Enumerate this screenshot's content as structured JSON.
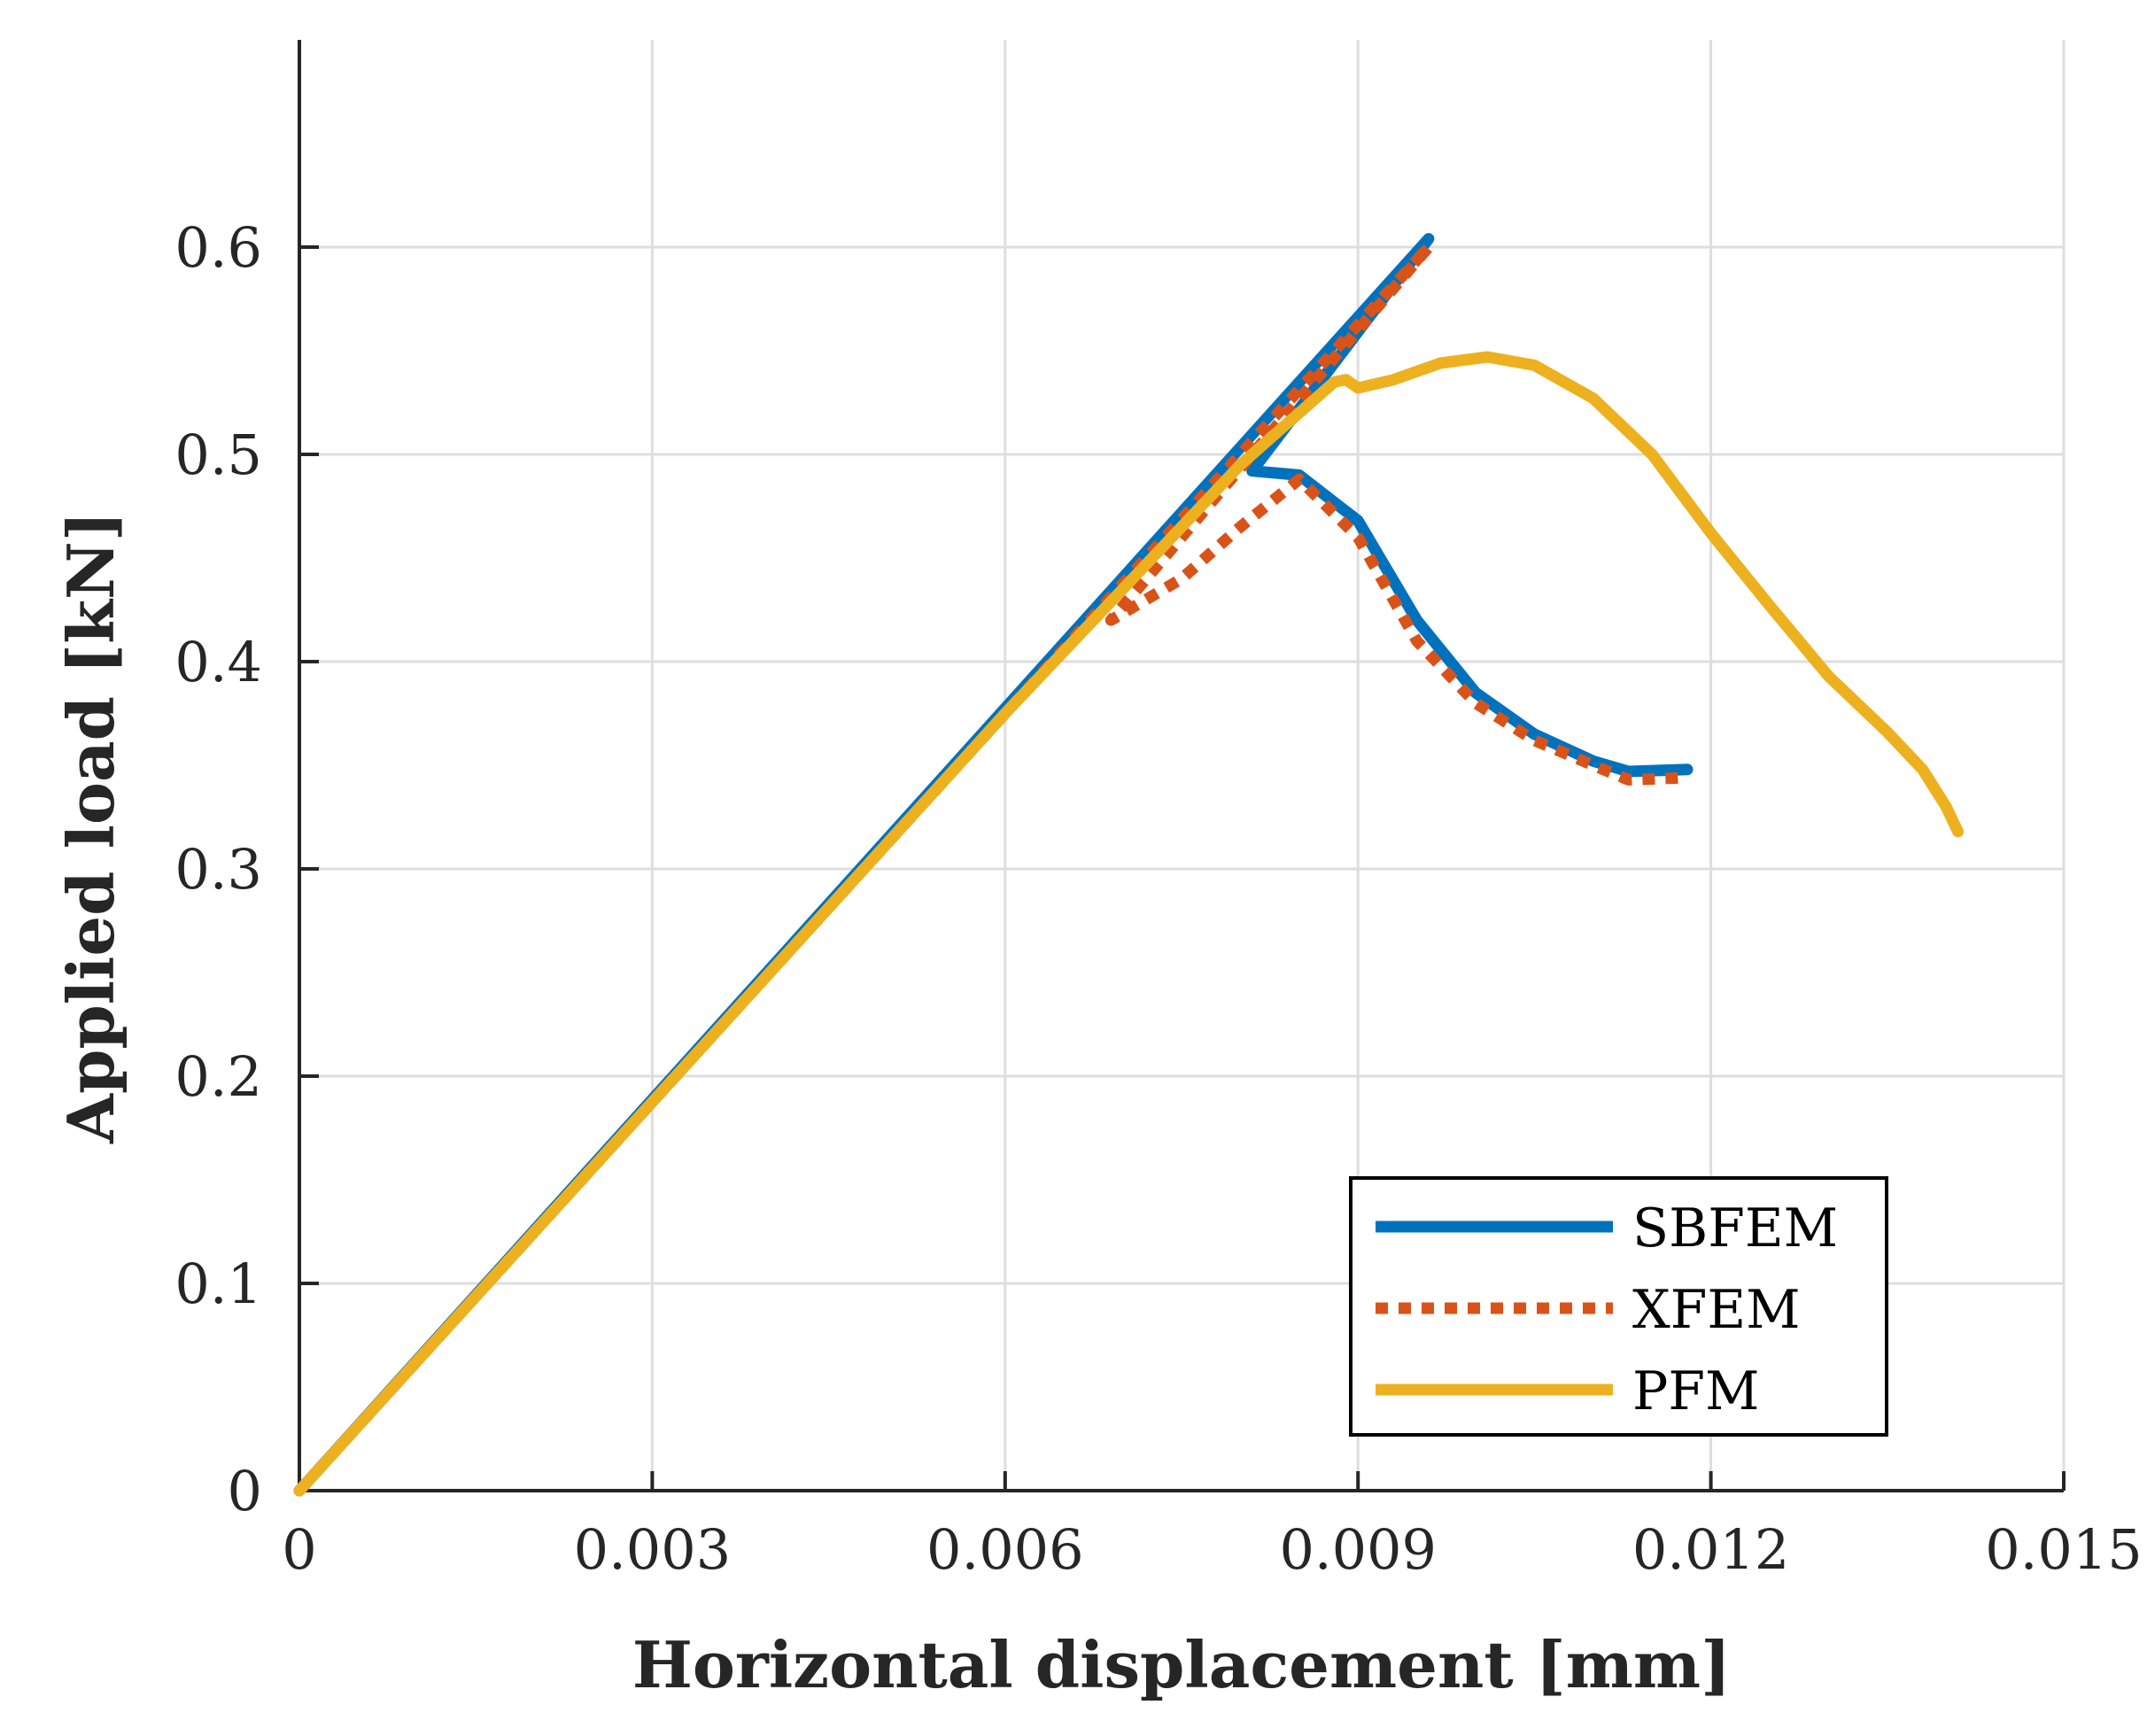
{
  "chart_data": {
    "type": "line",
    "title": "",
    "xlabel": "Horizontal displacement [mm]",
    "ylabel": "Applied load [kN]",
    "xlim": [
      0,
      0.015
    ],
    "ylim": [
      0,
      0.7
    ],
    "grid": true,
    "legend_position": "bottom-right",
    "x_ticks": [
      0,
      0.003,
      0.006,
      0.009,
      0.012,
      0.015
    ],
    "x_tick_labels": [
      "0",
      "0.003",
      "0.006",
      "0.009",
      "0.012",
      "0.015"
    ],
    "y_ticks": [
      0,
      0.1,
      0.2,
      0.3,
      0.4,
      0.5,
      0.6
    ],
    "y_tick_labels": [
      "0",
      "0.1",
      "0.2",
      "0.3",
      "0.4",
      "0.5",
      "0.6"
    ],
    "series": [
      {
        "name": "SBFEM",
        "color": "#0072BD",
        "style": "solid",
        "x": [
          0,
          0.0096,
          0.0081,
          0.0085,
          0.009,
          0.0095,
          0.01,
          0.0105,
          0.011,
          0.0113,
          0.0118
        ],
        "y": [
          0,
          0.604,
          0.492,
          0.49,
          0.468,
          0.42,
          0.385,
          0.365,
          0.352,
          0.347,
          0.348
        ]
      },
      {
        "name": "XFEM",
        "color": "#D95319",
        "style": "dotted",
        "x": [
          0,
          0.0096,
          0.0069,
          0.0075,
          0.008,
          0.0085,
          0.009,
          0.0095,
          0.01,
          0.0105,
          0.011,
          0.0113,
          0.0118
        ],
        "y": [
          0,
          0.6,
          0.42,
          0.44,
          0.465,
          0.488,
          0.46,
          0.41,
          0.38,
          0.362,
          0.35,
          0.343,
          0.344
        ]
      },
      {
        "name": "PFM",
        "color": "#EDB120",
        "style": "solid",
        "x": [
          0,
          0.006,
          0.008,
          0.0088,
          0.0089,
          0.009,
          0.0093,
          0.0097,
          0.0101,
          0.0105,
          0.011,
          0.0115,
          0.012,
          0.0125,
          0.013,
          0.0135,
          0.0138,
          0.014,
          0.0141
        ],
        "y": [
          0,
          0.375,
          0.495,
          0.535,
          0.536,
          0.532,
          0.536,
          0.544,
          0.547,
          0.543,
          0.527,
          0.5,
          0.462,
          0.427,
          0.393,
          0.366,
          0.348,
          0.33,
          0.318
        ]
      }
    ]
  }
}
